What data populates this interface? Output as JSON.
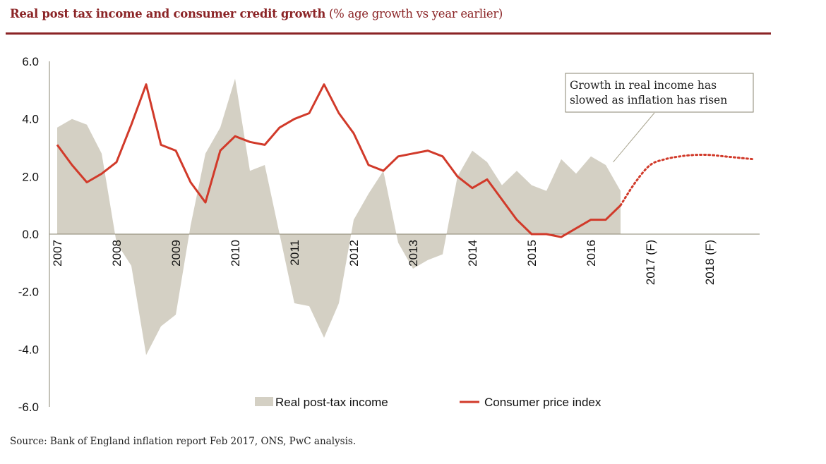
{
  "header": {
    "title_bold": "Real post tax income and consumer credit growth",
    "title_sub": "(% age growth vs year earlier)"
  },
  "footer": {
    "source": "Source: Bank of England  inflation  report Feb 2017, ONS, PwC analysis."
  },
  "chart_data": {
    "type": "area+line",
    "title": "Real post tax income and consumer credit growth (% age growth vs year earlier)",
    "xlabel": "",
    "ylabel": "",
    "ylim": [
      -6.0,
      6.0
    ],
    "yticks": [
      "6.0",
      "4.0",
      "2.0",
      "0.0",
      "-2.0",
      "-4.0",
      "-6.0"
    ],
    "ytick_values": [
      6,
      4,
      2,
      0,
      -2,
      -4,
      -6
    ],
    "x_unit": "quarter index from 2007 Q1",
    "xticks": [
      {
        "q": 0,
        "label": "2007"
      },
      {
        "q": 4,
        "label": "2008"
      },
      {
        "q": 8,
        "label": "2009"
      },
      {
        "q": 12,
        "label": "2010"
      },
      {
        "q": 16,
        "label": "2011"
      },
      {
        "q": 20,
        "label": "2012"
      },
      {
        "q": 24,
        "label": "2013"
      },
      {
        "q": 28,
        "label": "2014"
      },
      {
        "q": 32,
        "label": "2015"
      },
      {
        "q": 36,
        "label": "2016"
      },
      {
        "q": 40,
        "label": "2017 (F)"
      },
      {
        "q": 44,
        "label": "2018 (F)"
      }
    ],
    "colors": {
      "income": "#d4d0c4",
      "cpi": "#d13a2a",
      "axis": "#8a8570",
      "title": "#8b2426"
    },
    "legend": {
      "position": "bottom",
      "items": [
        {
          "name": "Real post-tax income",
          "kind": "area"
        },
        {
          "name": "Consumer price index",
          "kind": "line"
        }
      ]
    },
    "annotation": {
      "lines": [
        "Growth in real income has",
        "slowed as inflation has risen"
      ],
      "points_to": {
        "q": 37.5,
        "value": 2.5
      }
    },
    "series": [
      {
        "name": "Real post-tax income",
        "kind": "area",
        "q": [
          0,
          1,
          2,
          3,
          4,
          5,
          6,
          7,
          8,
          9,
          10,
          11,
          12,
          13,
          14,
          15,
          16,
          17,
          18,
          19,
          20,
          21,
          22,
          23,
          24,
          25,
          26,
          27,
          28,
          29,
          30,
          31,
          32,
          33,
          34,
          35,
          36,
          37,
          38
        ],
        "values": [
          3.7,
          4.0,
          3.8,
          2.8,
          -0.3,
          -1.1,
          -4.2,
          -3.2,
          -2.8,
          0.3,
          2.8,
          3.7,
          5.4,
          2.2,
          2.4,
          0.0,
          -2.4,
          -2.5,
          -3.6,
          -2.4,
          0.5,
          1.4,
          2.2,
          -0.3,
          -1.2,
          -0.9,
          -0.7,
          2.0,
          2.9,
          2.5,
          1.7,
          2.2,
          1.7,
          1.5,
          2.6,
          2.1,
          2.7,
          2.4,
          1.5
        ]
      },
      {
        "name": "Consumer price index",
        "kind": "line",
        "q": [
          0,
          1,
          2,
          3,
          4,
          5,
          6,
          7,
          8,
          9,
          10,
          11,
          12,
          13,
          14,
          15,
          16,
          17,
          18,
          19,
          20,
          21,
          22,
          23,
          24,
          25,
          26,
          27,
          28,
          29,
          30,
          31,
          32,
          33,
          34,
          35,
          36,
          37,
          38
        ],
        "values": [
          3.1,
          2.4,
          1.8,
          2.1,
          2.5,
          3.8,
          5.2,
          3.1,
          2.9,
          1.8,
          1.1,
          2.9,
          3.4,
          3.2,
          3.1,
          3.7,
          4.0,
          4.2,
          5.2,
          4.2,
          3.5,
          2.4,
          2.2,
          2.7,
          2.8,
          2.9,
          2.7,
          2.0,
          1.6,
          1.9,
          1.2,
          0.5,
          0.0,
          0.0,
          -0.1,
          0.2,
          0.5,
          0.5,
          1.0
        ]
      },
      {
        "name": "Consumer price index (forecast)",
        "kind": "dotted-line",
        "q": [
          38,
          39,
          40,
          41,
          42,
          43,
          44,
          45,
          46,
          47
        ],
        "values": [
          1.0,
          1.8,
          2.4,
          2.6,
          2.7,
          2.75,
          2.75,
          2.7,
          2.65,
          2.6
        ]
      }
    ]
  }
}
